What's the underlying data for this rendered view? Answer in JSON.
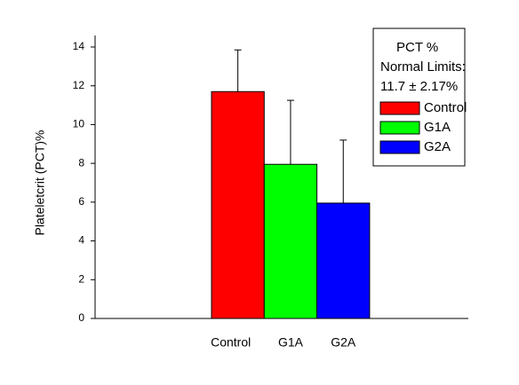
{
  "chart_data": {
    "type": "bar",
    "ylabel": "Plateletcrit (PCT)%",
    "categories": [
      "Control",
      "G1A",
      "G2A"
    ],
    "values": [
      11.7,
      7.95,
      5.95
    ],
    "errors": [
      2.15,
      3.3,
      3.25
    ],
    "colors": [
      "#ff0000",
      "#00ff00",
      "#0000ff"
    ],
    "ylim": [
      0,
      14
    ],
    "yticks": [
      0,
      2,
      4,
      6,
      8,
      10,
      12,
      14
    ],
    "legend_title": [
      "PCT %",
      "Normal Limits:",
      "11.7 ± 2.17%"
    ],
    "legend": "upper right",
    "grid": false
  }
}
